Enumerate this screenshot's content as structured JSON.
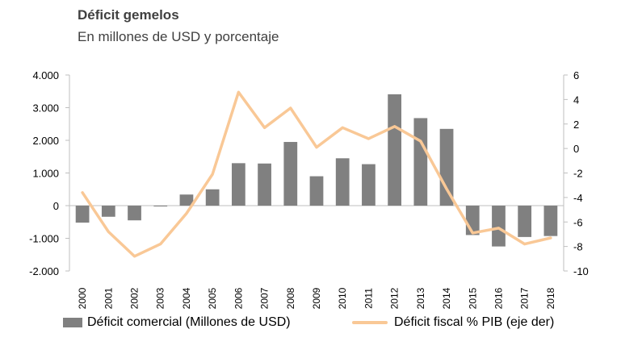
{
  "title": "Déficit gemelos",
  "subtitle": "En millones de USD y porcentaje",
  "colors": {
    "bar": "#808080",
    "line": "#f9c896",
    "axis": "#bfbfbf"
  },
  "chart_data": {
    "type": "bar+line",
    "categories": [
      "2000",
      "2001",
      "2002",
      "2003",
      "2004",
      "2005",
      "2006",
      "2007",
      "2008",
      "2009",
      "2010",
      "2011",
      "2012",
      "2013",
      "2014",
      "2015",
      "2016",
      "2017",
      "2018"
    ],
    "series": [
      {
        "name": "Déficit comercial (Millones de USD)",
        "type": "bar",
        "axis": "left",
        "values": [
          -520,
          -340,
          -450,
          -20,
          340,
          500,
          1300,
          1290,
          1950,
          900,
          1450,
          1270,
          3410,
          2680,
          2350,
          -900,
          -1250,
          -960,
          -930
        ]
      },
      {
        "name": "Déficit fiscal % PIB (eje der)",
        "type": "line",
        "axis": "right",
        "values": [
          -3.6,
          -6.8,
          -8.8,
          -7.8,
          -5.3,
          -2.1,
          4.6,
          1.7,
          3.3,
          0.1,
          1.7,
          0.8,
          1.8,
          0.6,
          -3.3,
          -6.9,
          -6.5,
          -7.8,
          -7.3
        ]
      }
    ],
    "y_left": {
      "ticks": [
        "4.000",
        "3.000",
        "2.000",
        "1.000",
        "0",
        "-1.000",
        "-2.000"
      ],
      "min": -2000,
      "max": 4000
    },
    "y_right": {
      "ticks": [
        "6",
        "4",
        "2",
        "0",
        "-2",
        "-4",
        "-6",
        "-8",
        "-10"
      ],
      "min": -10,
      "max": 6
    },
    "legend_position": "bottom",
    "grid": false
  }
}
